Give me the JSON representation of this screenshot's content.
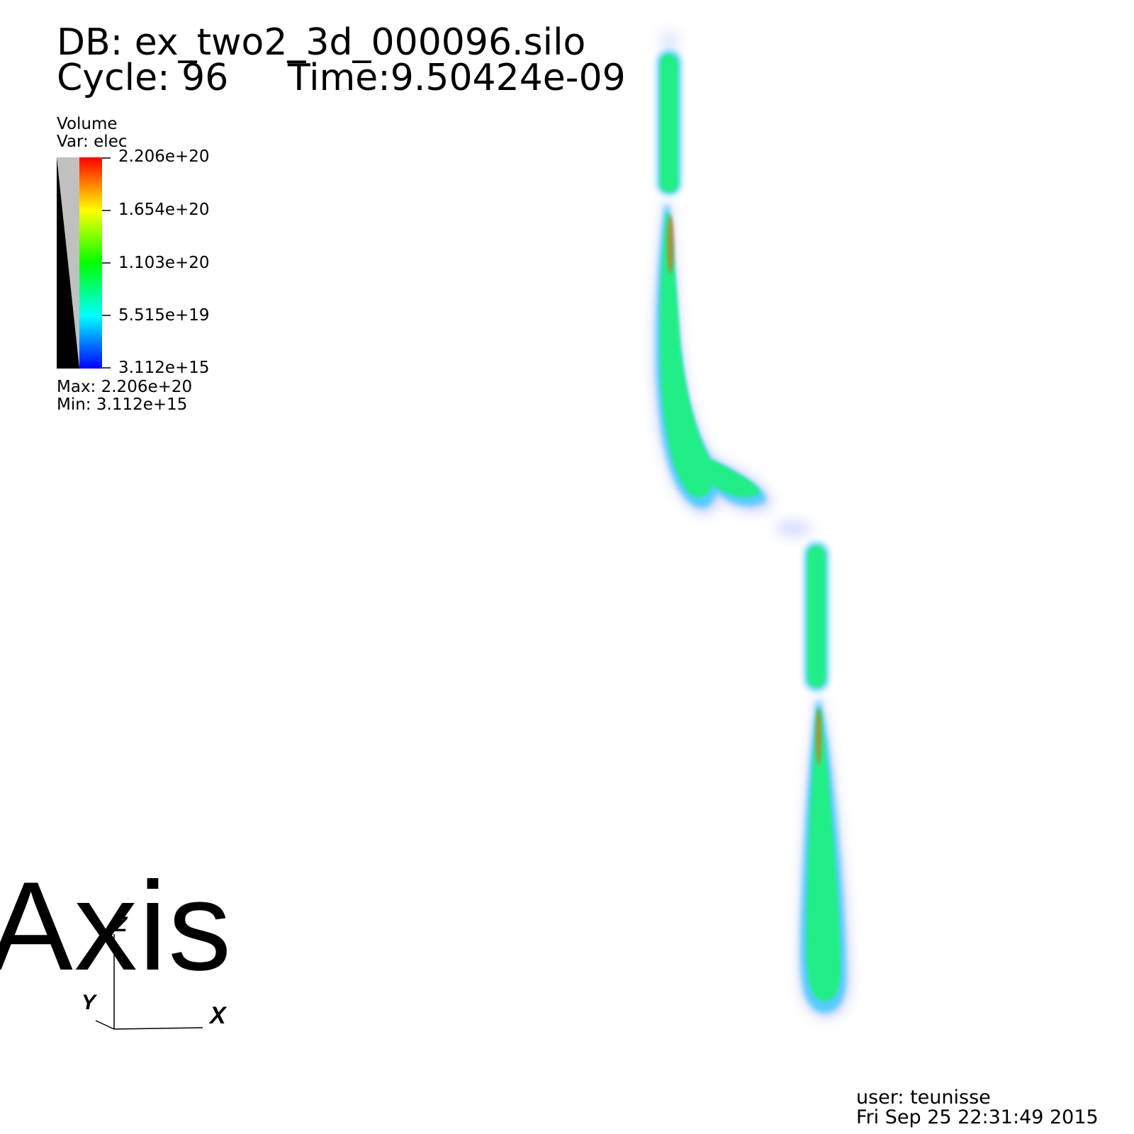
{
  "header": {
    "db_label": "DB: ex_two2_3d_000096.silo",
    "cycle_label": "Cycle: 96",
    "time_label": "Time:9.50424e-09"
  },
  "legend": {
    "plot_type": "Volume",
    "variable": "Var: elec",
    "ticks": [
      "2.206e+20",
      "1.654e+20",
      "1.103e+20",
      "5.515e+19",
      "3.112e+15"
    ],
    "max": "Max:  2.206e+20",
    "min": "Min:  3.112e+15",
    "colormap": [
      "#ff0000",
      "#ffff00",
      "#00ff00",
      "#00ffff",
      "#0000ff"
    ],
    "opacity_ramp_colors": [
      "#000000",
      "#c0c0c0"
    ]
  },
  "axis_triad": {
    "watermark": "Axis",
    "x_label": "X",
    "y_label": "Y",
    "z_label": "Z"
  },
  "footer": {
    "user": "user: teunisse",
    "date": "Fri Sep 25 22:31:49 2015"
  },
  "plot_colors": {
    "core": "#22ee88",
    "halo": "#55ccff",
    "glow": "#aab4ff",
    "hot": "#cc7722"
  }
}
